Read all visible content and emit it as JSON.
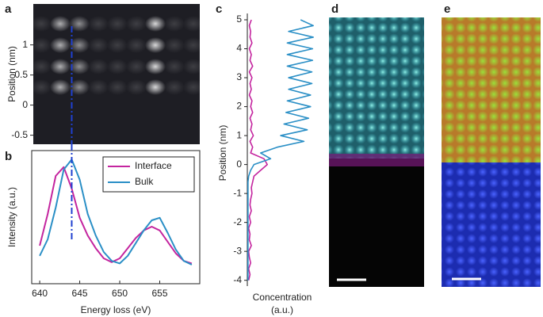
{
  "chart_data": [
    {
      "panel": "a",
      "type": "image",
      "ylabel": "Position (nm)",
      "ylim": [
        -0.65,
        1.68
      ],
      "yticks": [
        -0.5,
        0,
        0.5,
        1
      ]
    },
    {
      "panel": "b",
      "type": "line",
      "xlabel": "Energy loss (eV)",
      "ylabel": "Intensity (a.u.)",
      "xlim": [
        639,
        660
      ],
      "xticks": [
        640,
        645,
        650,
        655
      ],
      "ylim": [
        0,
        1.05
      ],
      "vline": 644,
      "legend": "upper right",
      "x": [
        640,
        641,
        642,
        643,
        644,
        645,
        646,
        647,
        648,
        649,
        650,
        651,
        652,
        653,
        654,
        655,
        656,
        657,
        658,
        659
      ],
      "series": [
        {
          "name": "Interface",
          "color": "#c4259f",
          "values": [
            0.3,
            0.55,
            0.85,
            0.92,
            0.75,
            0.52,
            0.38,
            0.28,
            0.2,
            0.17,
            0.2,
            0.28,
            0.36,
            0.42,
            0.45,
            0.42,
            0.33,
            0.24,
            0.18,
            0.16
          ]
        },
        {
          "name": "Bulk",
          "color": "#2a8fc6",
          "values": [
            0.22,
            0.35,
            0.6,
            0.9,
            0.98,
            0.82,
            0.55,
            0.38,
            0.25,
            0.18,
            0.16,
            0.22,
            0.32,
            0.42,
            0.5,
            0.52,
            0.4,
            0.27,
            0.18,
            0.15
          ]
        }
      ]
    },
    {
      "panel": "c",
      "type": "profile",
      "xlabel": [
        "Concentration",
        "(a.u.)"
      ],
      "ylabel": "Position (nm)",
      "xlim": [
        0,
        1
      ],
      "ylim": [
        -4.2,
        5
      ],
      "yticks": [
        -4,
        -3,
        -2,
        -1,
        0,
        1,
        2,
        3,
        4,
        5
      ],
      "y": [
        -4,
        -3.8,
        -3.6,
        -3.4,
        -3.2,
        -3,
        -2.8,
        -2.6,
        -2.4,
        -2.2,
        -2,
        -1.8,
        -1.6,
        -1.4,
        -1.2,
        -1,
        -0.8,
        -0.6,
        -0.4,
        -0.2,
        0,
        0.2,
        0.4,
        0.6,
        0.8,
        1,
        1.2,
        1.4,
        1.6,
        1.8,
        2,
        2.2,
        2.4,
        2.6,
        2.8,
        3,
        3.2,
        3.4,
        3.6,
        3.8,
        4,
        4.2,
        4.4,
        4.6,
        4.8,
        5
      ],
      "series": [
        {
          "name": "Interface",
          "color": "#c4259f",
          "values": [
            0.02,
            0.04,
            0.02,
            0.05,
            0.03,
            0.02,
            0.06,
            0.03,
            0.04,
            0.02,
            0.05,
            0.03,
            0.06,
            0.04,
            0.05,
            0.07,
            0.06,
            0.08,
            0.1,
            0.2,
            0.3,
            0.25,
            0.05,
            0.08,
            0.04,
            0.09,
            0.05,
            0.07,
            0.04,
            0.08,
            0.05,
            0.07,
            0.03,
            0.06,
            0.04,
            0.07,
            0.03,
            0.08,
            0.04,
            0.06,
            0.03,
            0.07,
            0.04,
            0.05,
            0.03,
            0.06
          ]
        },
        {
          "name": "Bulk",
          "color": "#2a8fc6",
          "values": [
            0.01,
            0.01,
            0.01,
            0.01,
            0.01,
            0.01,
            0.01,
            0.01,
            0.01,
            0.01,
            0.01,
            0.01,
            0.01,
            0.01,
            0.01,
            0.01,
            0.01,
            0.01,
            0.02,
            0.05,
            0.1,
            0.35,
            0.2,
            0.45,
            0.85,
            0.5,
            0.9,
            0.55,
            0.92,
            0.58,
            0.95,
            0.6,
            0.95,
            0.62,
            0.97,
            0.62,
            0.97,
            0.6,
            0.98,
            0.6,
            0.98,
            0.6,
            0.99,
            0.62,
            0.99,
            0.8
          ]
        }
      ]
    },
    {
      "panel": "d",
      "type": "image"
    },
    {
      "panel": "e",
      "type": "image"
    }
  ]
}
